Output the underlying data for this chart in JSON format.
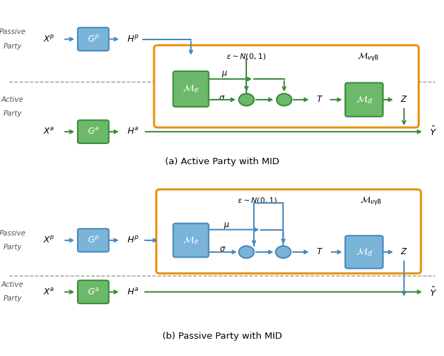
{
  "fig_width": 6.4,
  "fig_height": 5.14,
  "bg_color": "#ffffff",
  "blue_box_color": "#7ab4d8",
  "blue_box_edge": "#4a88bb",
  "green_box_color": "#6db96b",
  "green_box_edge": "#3a8a3a",
  "orange_color": "#e8920a",
  "green_arrow": "#3a8a3a",
  "blue_arrow": "#4a88bb",
  "dashed_color": "#999999",
  "text_color": "#555555",
  "title_a": "(a) Active Party with MID",
  "title_b": "(b) Passive Party with MID"
}
